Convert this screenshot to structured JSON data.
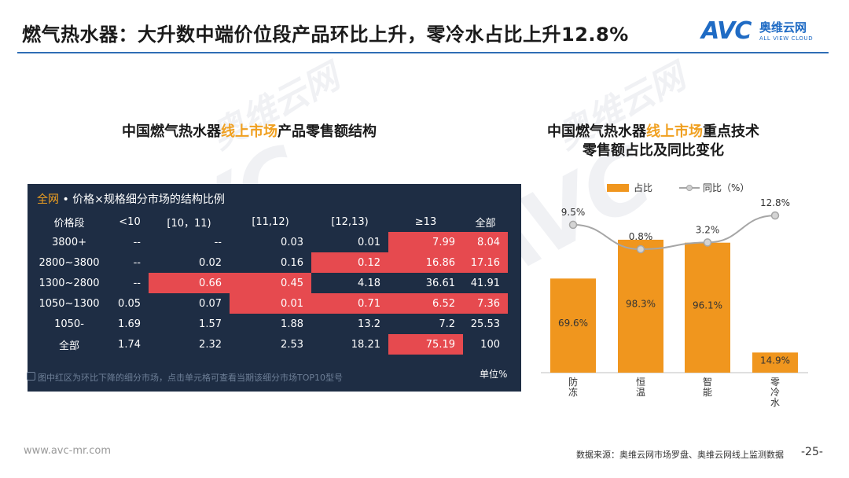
{
  "title": "燃气热水器：大升数中端价位段产品环比上升，零冷水占比上升12.8%",
  "logo": {
    "mark": "AVC",
    "cn": "奥维云网",
    "en": "ALL VIEW CLOUD"
  },
  "watermark": {
    "cn": "奥维云网",
    "en": "ALL VIEW CLOUD",
    "mark": "AVC"
  },
  "left_heading": {
    "pre": "中国燃气热水器",
    "hl": "线上市场",
    "post": "产品零售额结构"
  },
  "right_heading": {
    "line1_pre": "中国燃气热水器",
    "line1_hl": "线上市场",
    "line1_post": "重点技术",
    "line2": "零售额占比及同比变化"
  },
  "table": {
    "head_prefix": "全网",
    "head_rest": " • 价格×规格细分市场的结构比例",
    "columns": [
      "价格段",
      "<10",
      "[10，11)",
      "[11,12)",
      "[12,13)",
      "≥13",
      "全部"
    ],
    "rows": [
      {
        "label": "3800+",
        "cells": [
          "--",
          "--",
          "0.03",
          "0.01",
          "7.99",
          "8.04"
        ],
        "red": [
          false,
          false,
          false,
          false,
          true,
          true
        ]
      },
      {
        "label": "2800~3800",
        "cells": [
          "--",
          "0.02",
          "0.16",
          "0.12",
          "16.86",
          "17.16"
        ],
        "red": [
          false,
          false,
          false,
          true,
          true,
          true
        ]
      },
      {
        "label": "1300~2800",
        "cells": [
          "--",
          "0.66",
          "0.45",
          "4.18",
          "36.61",
          "41.91"
        ],
        "red": [
          false,
          true,
          true,
          false,
          false,
          false
        ]
      },
      {
        "label": "1050~1300",
        "cells": [
          "0.05",
          "0.07",
          "0.01",
          "0.71",
          "6.52",
          "7.36"
        ],
        "red": [
          false,
          false,
          true,
          true,
          true,
          true
        ]
      },
      {
        "label": "1050-",
        "cells": [
          "1.69",
          "1.57",
          "1.88",
          "13.2",
          "7.2",
          "25.53"
        ],
        "red": [
          false,
          false,
          false,
          false,
          false,
          false
        ]
      },
      {
        "label": "全部",
        "cells": [
          "1.74",
          "2.32",
          "2.53",
          "18.21",
          "75.19",
          "100"
        ],
        "red": [
          false,
          false,
          false,
          false,
          true,
          false
        ]
      }
    ],
    "note": "图中红区为环比下降的细分市场，点击单元格可查看当期该细分市场TOP10型号",
    "unit": "单位%"
  },
  "chart_data": {
    "type": "bar",
    "categories": [
      "防冻",
      "恒温",
      "智能",
      "零冷水"
    ],
    "series": [
      {
        "name": "占比",
        "values": [
          69.6,
          98.3,
          96.1,
          14.9
        ],
        "labels": [
          "69.6%",
          "98.3%",
          "96.1%",
          "14.9%"
        ],
        "color": "#f0961e",
        "kind": "bar"
      },
      {
        "name": "同比（%）",
        "values": [
          9.5,
          0.8,
          3.2,
          12.8
        ],
        "labels": [
          "9.5%",
          "0.8%",
          "3.2%",
          "12.8%"
        ],
        "color": "#a6a6a6",
        "kind": "line"
      }
    ],
    "ylim": [
      0,
      100
    ],
    "line_ylim": [
      -12,
      16
    ],
    "legend": "top-center",
    "grid": false,
    "xlabel": "",
    "ylabel": "",
    "title": ""
  },
  "footer": {
    "url": "www.avc-mr.com",
    "source": "数据来源：奥维云网市场罗盘、奥维云网线上监测数据",
    "page": "-25-"
  }
}
